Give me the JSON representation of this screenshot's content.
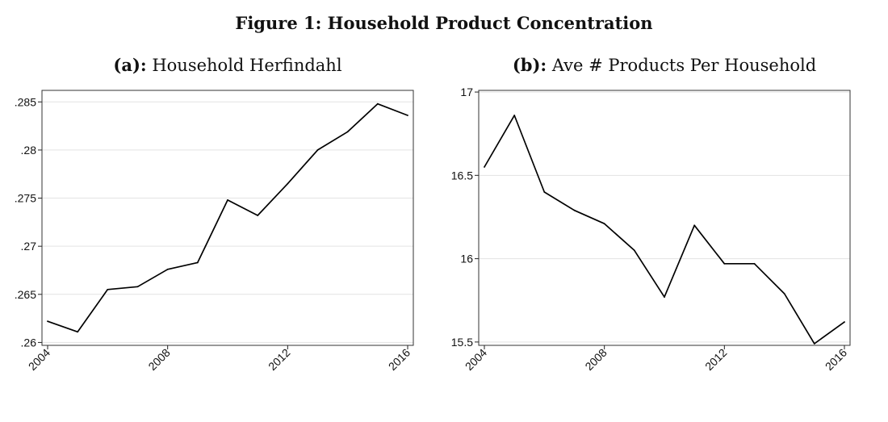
{
  "figure": {
    "title": "Figure 1: Household Product Concentration"
  },
  "chart_data": [
    {
      "type": "line",
      "panel_label": "(a):",
      "title": "Household Herfindahl",
      "xlabel": "",
      "ylabel": "",
      "x": [
        2004,
        2005,
        2006,
        2007,
        2008,
        2009,
        2010,
        2011,
        2012,
        2013,
        2014,
        2015,
        2016
      ],
      "series": [
        {
          "values": [
            0.2622,
            0.2611,
            0.2655,
            0.2658,
            0.2676,
            0.2683,
            0.2748,
            0.2732,
            0.2765,
            0.28,
            0.2819,
            0.2848,
            0.2836
          ]
        }
      ],
      "xlim": [
        2004,
        2016
      ],
      "ylim": [
        0.2597,
        0.2862
      ],
      "x_ticks": [
        2004,
        2008,
        2012,
        2016
      ],
      "x_tick_labels": [
        "2004",
        "2008",
        "2012",
        "2016"
      ],
      "y_ticks": [
        0.26,
        0.265,
        0.27,
        0.275,
        0.28,
        0.285
      ],
      "y_tick_labels": [
        ".26",
        ".265",
        ".27",
        ".275",
        ".28",
        ".285"
      ],
      "grid": true,
      "line_color": "#000000"
    },
    {
      "type": "line",
      "panel_label": "(b):",
      "title": "Ave # Products Per Household",
      "xlabel": "",
      "ylabel": "",
      "x": [
        2004,
        2005,
        2006,
        2007,
        2008,
        2009,
        2010,
        2011,
        2012,
        2013,
        2014,
        2015,
        2016
      ],
      "series": [
        {
          "values": [
            16.55,
            16.86,
            16.4,
            16.29,
            16.21,
            16.05,
            15.77,
            16.2,
            15.97,
            15.97,
            15.79,
            15.49,
            15.62
          ]
        }
      ],
      "xlim": [
        2004,
        2016
      ],
      "ylim": [
        15.48,
        17.01
      ],
      "x_ticks": [
        2004,
        2008,
        2012,
        2016
      ],
      "x_tick_labels": [
        "2004",
        "2008",
        "2012",
        "2016"
      ],
      "y_ticks": [
        15.5,
        16,
        16.5,
        17
      ],
      "y_tick_labels": [
        "15.5",
        "16",
        "16.5",
        "17"
      ],
      "grid": true,
      "line_color": "#000000"
    }
  ]
}
